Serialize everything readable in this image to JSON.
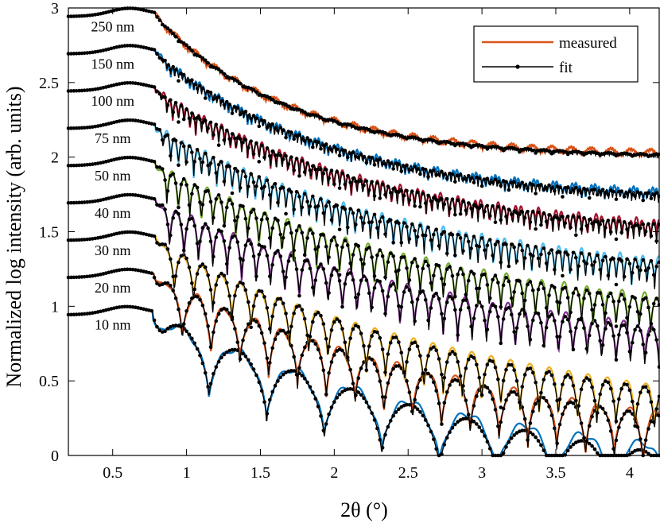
{
  "chart_data": {
    "type": "line",
    "title": "",
    "xlabel": "2θ (°)",
    "ylabel": "Normalized log intensity (arb. units)",
    "xlim": [
      0.2,
      4.2
    ],
    "ylim": [
      0,
      3
    ],
    "xticks": [
      0.5,
      1,
      1.5,
      2,
      2.5,
      3,
      3.5,
      4
    ],
    "xtick_labels": [
      "0.5",
      "1",
      "1.5",
      "2",
      "2.5",
      "3",
      "3.5",
      "4"
    ],
    "yticks": [
      0,
      0.5,
      1,
      1.5,
      2,
      2.5,
      3
    ],
    "ytick_labels": [
      "0",
      "0.5",
      "1",
      "1.5",
      "2",
      "2.5",
      "3"
    ],
    "grid": false,
    "legend": {
      "position": "top-right",
      "entries": [
        {
          "label": "measured",
          "color": "#d95319",
          "style": "line"
        },
        {
          "label": "fit",
          "color": "#000000",
          "style": "line-with-dots"
        }
      ]
    },
    "fit_color": "#000000",
    "series": [
      {
        "name": "10 nm",
        "thickness_nm": 10,
        "offset": 0.95,
        "critical_angle": 0.77,
        "end_value": 0.02,
        "amplitude": 0.45,
        "measured_color": "#0072bd"
      },
      {
        "name": "20 nm",
        "thickness_nm": 20,
        "offset": 1.2,
        "critical_angle": 0.78,
        "end_value": 0.27,
        "amplitude": 0.4,
        "measured_color": "#d95319"
      },
      {
        "name": "30 nm",
        "thickness_nm": 30,
        "offset": 1.45,
        "critical_angle": 0.79,
        "end_value": 0.45,
        "amplitude": 0.35,
        "measured_color": "#edb120"
      },
      {
        "name": "40 nm",
        "thickness_nm": 40,
        "offset": 1.7,
        "critical_angle": 0.79,
        "end_value": 0.85,
        "amplitude": 0.32,
        "measured_color": "#7e2f8e"
      },
      {
        "name": "50 nm",
        "thickness_nm": 50,
        "offset": 1.95,
        "critical_angle": 0.79,
        "end_value": 1.05,
        "amplitude": 0.28,
        "measured_color": "#77ac30"
      },
      {
        "name": "75 nm",
        "thickness_nm": 75,
        "offset": 2.2,
        "critical_angle": 0.79,
        "end_value": 1.3,
        "amplitude": 0.22,
        "measured_color": "#4dbeee"
      },
      {
        "name": "100 nm",
        "thickness_nm": 100,
        "offset": 2.45,
        "critical_angle": 0.79,
        "end_value": 1.55,
        "amplitude": 0.15,
        "measured_color": "#a2142f"
      },
      {
        "name": "150 nm",
        "thickness_nm": 150,
        "offset": 2.7,
        "critical_angle": 0.79,
        "end_value": 1.76,
        "amplitude": 0.08,
        "measured_color": "#0072bd"
      },
      {
        "name": "250 nm",
        "thickness_nm": 250,
        "offset": 2.95,
        "critical_angle": 0.79,
        "end_value": 2.02,
        "amplitude": 0.03,
        "measured_color": "#d95319"
      }
    ],
    "annotations": [
      "250 nm",
      "150 nm",
      "100 nm",
      "75 nm",
      "50 nm",
      "40 nm",
      "30 nm",
      "20 nm",
      "10 nm"
    ]
  }
}
